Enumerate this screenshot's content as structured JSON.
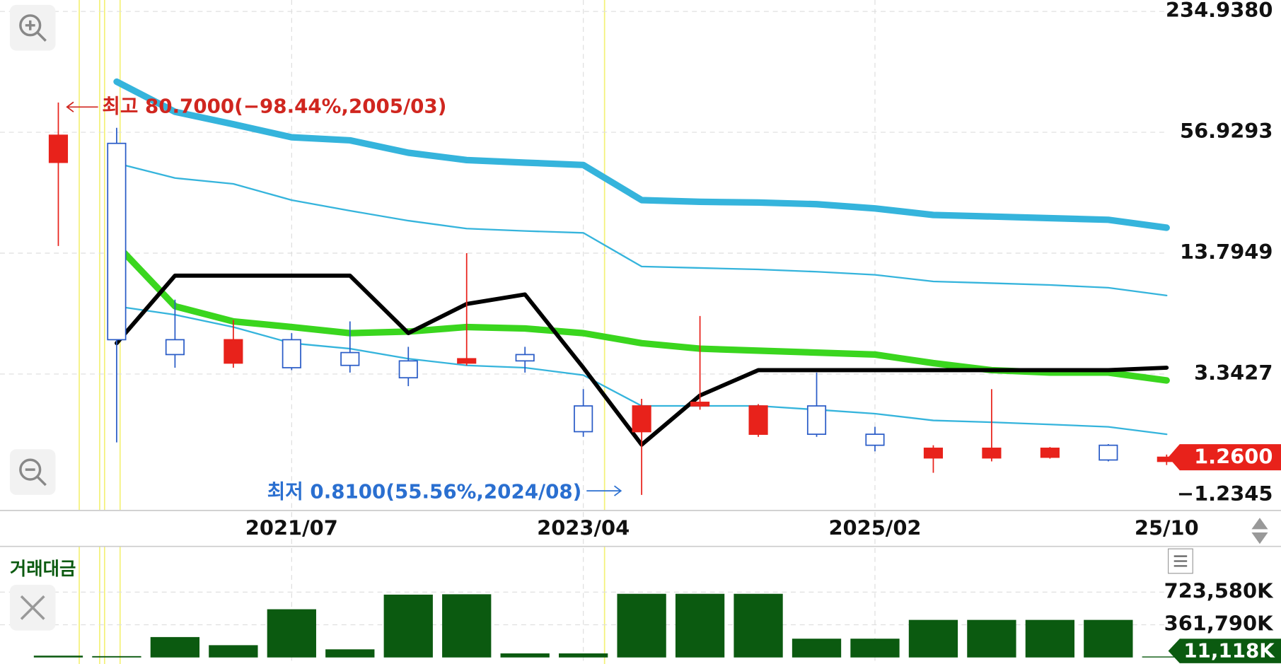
{
  "chart_data": [
    {
      "type": "candlestick",
      "categories": [
        null,
        null,
        null,
        null,
        null,
        "2021/07",
        null,
        null,
        null,
        null,
        "2023/04",
        null,
        null,
        null,
        null,
        "2025/02",
        null,
        null,
        null,
        null,
        "25/10"
      ],
      "open": [
        null,
        40,
        50,
        5,
        3.8,
        5,
        4.3,
        3.9,
        3.8,
        4.2,
        2.3,
        1.7,
        2.3,
        1.65,
        2.3,
        1.65,
        1.25,
        1.25,
        1.26,
        1.45,
        1.2
      ],
      "high": [
        null,
        80.7,
        60,
        8,
        6.3,
        5.4,
        6.2,
        4.6,
        13.8,
        4.6,
        2.8,
        2.5,
        6.6,
        2.35,
        3.4,
        1.8,
        1.45,
        2.8,
        1.42,
        1.47,
        1.3
      ],
      "low": [
        null,
        15,
        1.5,
        3.6,
        3.6,
        3.5,
        3.4,
        2.9,
        3.7,
        3.4,
        1.6,
        0.81,
        2.2,
        1.6,
        1.6,
        1.35,
        1.05,
        1.2,
        1.24,
        1.2,
        1.15
      ],
      "close": [
        null,
        55,
        5,
        4.2,
        5,
        3.6,
        3.7,
        3.2,
        4,
        3.9,
        1.7,
        2.3,
        2.4,
        2.3,
        1.65,
        1.45,
        1.4,
        1.4,
        1.4,
        1.22,
        1.26
      ],
      "up_color": "#e8221b",
      "down_color": "#2a5cc7",
      "series": [
        {
          "color": "#35b4dc",
          "width": "thick",
          "values": [
            null,
            null,
            103.1,
            72.4,
            62.6,
            53.7,
            51.8,
            44.8,
            41.1,
            39.9,
            38.8,
            25.7,
            25.2,
            25,
            24.5,
            23.3,
            21.6,
            21.2,
            20.8,
            20.4,
            18.6
          ]
        },
        {
          "color": "#35b4dc",
          "width": "thin",
          "values": [
            null,
            null,
            39.6,
            33.3,
            31.1,
            25.7,
            22.7,
            20.2,
            18.4,
            17.9,
            17.5,
            11.8,
            11.6,
            11.4,
            11.1,
            10.7,
            9.9,
            9.7,
            9.5,
            9.2,
            8.4
          ]
        },
        {
          "color": "#3ad61e",
          "width": "thick",
          "values": [
            null,
            null,
            15.2,
            7.4,
            6.2,
            5.8,
            5.4,
            5.5,
            5.8,
            5.7,
            5.4,
            4.8,
            4.5,
            4.4,
            4.3,
            4.2,
            3.8,
            3.5,
            3.4,
            3.4,
            3.1
          ]
        },
        {
          "color": "#35b4dc",
          "width": "thin",
          "values": [
            null,
            null,
            7.4,
            6.7,
            5.8,
            4.8,
            4.5,
            4,
            3.7,
            3.6,
            3.3,
            2.3,
            2.3,
            2.3,
            2.2,
            2.1,
            1.94,
            1.9,
            1.85,
            1.8,
            1.65
          ]
        },
        {
          "color": "#000000",
          "width": "medium",
          "values": [
            null,
            null,
            4.8,
            10.6,
            10.6,
            10.6,
            10.6,
            5.4,
            7.6,
            8.5,
            3.6,
            1.46,
            2.6,
            3.5,
            3.5,
            3.5,
            3.5,
            3.5,
            3.5,
            3.5,
            3.6
          ]
        }
      ],
      "log_scale": true,
      "grid": true,
      "ylim": [
        0.675,
        268.6
      ],
      "yticks": [
        {
          "value": 234.938,
          "label": "234.9380"
        },
        {
          "value": 56.9293,
          "label": "56.9293"
        },
        {
          "value": 13.7949,
          "label": "13.7949"
        },
        {
          "value": 3.3427,
          "label": "3.3427"
        }
      ],
      "y_bottom_label": "−1.2345",
      "high_label": "최고 80.7000(−98.44%,2005/03)",
      "low_label": "최저 0.8100(55.56%,2024/08)",
      "current_value": 1.26,
      "current_label": "1.2600"
    },
    {
      "type": "bar",
      "title": "거래대금",
      "categories": [
        null,
        null,
        null,
        null,
        null,
        null,
        null,
        null,
        null,
        null,
        null,
        null,
        null,
        null,
        null,
        null,
        null,
        null,
        null,
        null,
        null
      ],
      "values": [
        null,
        20000,
        15000,
        226000,
        136000,
        534000,
        90000,
        696000,
        700000,
        45000,
        45000,
        705000,
        705000,
        705000,
        208000,
        208000,
        416000,
        416000,
        416000,
        416000,
        11118
      ],
      "color": "#0b5a10",
      "ylim": [
        0,
        1085370
      ],
      "yticks": [
        {
          "value": 723580,
          "label": "723,580K"
        },
        {
          "value": 361790,
          "label": "361,790K"
        }
      ],
      "current_value": 11118,
      "current_label": "11,118K"
    }
  ]
}
